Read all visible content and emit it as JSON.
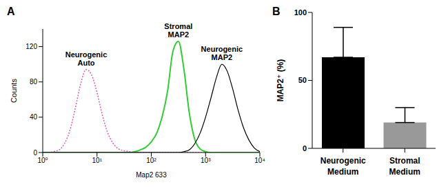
{
  "chart_data": [
    {
      "type": "line",
      "title": "A",
      "xlabel": "Map2 633",
      "ylabel": "Counts",
      "log": "x",
      "xlim": [
        1,
        10000
      ],
      "xticks": [
        {
          "value": 1,
          "label": "10⁰"
        },
        {
          "value": 10,
          "label": "10¹"
        },
        {
          "value": 100,
          "label": "10²"
        },
        {
          "value": 1000,
          "label": "10³"
        },
        {
          "value": 10000,
          "label": "10⁴"
        }
      ],
      "ylim": [
        0,
        140
      ],
      "yticks": [
        0,
        40,
        80,
        120
      ],
      "x": [
        1,
        1.26,
        1.58,
        2,
        2.51,
        3.16,
        3.98,
        5.01,
        6.31,
        7.94,
        10,
        12.6,
        15.8,
        20,
        25.1,
        31.6,
        39.8,
        50.1,
        63.1,
        79.4,
        100,
        126,
        158,
        200,
        251,
        316,
        398,
        501,
        631,
        794,
        1000,
        1259,
        1585,
        1995,
        2512,
        3162,
        3981,
        5012,
        6310,
        7943,
        10000
      ],
      "series": [
        {
          "name": "Neurogenic Auto",
          "color": "#e35bb5",
          "line_style": "dotted",
          "values": [
            0,
            0,
            1,
            3,
            10,
            25,
            50,
            78,
            94,
            88,
            68,
            42,
            22,
            10,
            4,
            2,
            1,
            0,
            0,
            0,
            0,
            0,
            0,
            0,
            0,
            0,
            0,
            0,
            0,
            0,
            0,
            0,
            0,
            0,
            0,
            0,
            0,
            0,
            0,
            0,
            0
          ]
        },
        {
          "name": "Stromal MAP2",
          "color": "#33cc33",
          "line_style": "solid",
          "values": [
            0,
            0,
            0,
            0,
            0,
            0,
            0,
            0,
            0,
            0,
            0,
            0,
            0,
            0,
            0,
            0,
            0,
            1,
            3,
            6,
            12,
            22,
            40,
            70,
            115,
            126,
            95,
            45,
            15,
            4,
            1,
            0,
            0,
            0,
            0,
            0,
            0,
            0,
            0,
            0,
            0
          ]
        },
        {
          "name": "Neurogenic MAP2",
          "color": "#000000",
          "line_style": "solid",
          "values": [
            0,
            0,
            0,
            0,
            0,
            0,
            0,
            0,
            0,
            0,
            0,
            0,
            0,
            0,
            0,
            0,
            0,
            0,
            0,
            0,
            0,
            0,
            0,
            0,
            0,
            0,
            1,
            3,
            10,
            22,
            40,
            62,
            85,
            100,
            92,
            72,
            48,
            28,
            14,
            5,
            1
          ]
        }
      ]
    },
    {
      "type": "bar",
      "title": "B",
      "ylabel": "MAP2⁺ (%)",
      "categories": [
        "Neurogenic Medium",
        "Stromal Medium"
      ],
      "values": [
        67,
        19
      ],
      "errors": [
        22,
        11
      ],
      "colors": [
        "#000000",
        "#999999"
      ],
      "ylim": [
        0,
        100
      ],
      "yticks": [
        0,
        50,
        100
      ]
    }
  ]
}
